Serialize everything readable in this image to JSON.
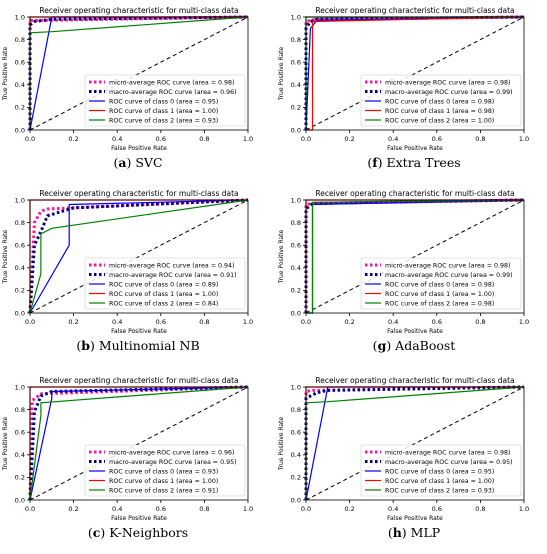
{
  "chart_data": [
    {
      "id": "a",
      "letter": "a",
      "model": "SVC",
      "type": "line",
      "title": "Receiver operating characteristic for multi-class data",
      "xlabel": "False Positive Rate",
      "ylabel": "True Positive Rate",
      "xlim": [
        0.0,
        1.0
      ],
      "ylim": [
        0.0,
        1.0
      ],
      "xticks": [
        "0.0",
        "0.2",
        "0.4",
        "0.6",
        "0.8",
        "1.0"
      ],
      "yticks": [
        "0.0",
        "0.2",
        "0.4",
        "0.6",
        "0.8",
        "1.0"
      ],
      "legend_position": "lower-right",
      "series": [
        {
          "name": "micro-average ROC curve (area = 0.98)",
          "color": "#ff1493",
          "style": "dotted",
          "x": [
            0,
            0,
            0.05,
            1
          ],
          "y": [
            0,
            0.97,
            0.97,
            1
          ]
        },
        {
          "name": "macro-average ROC curve (area = 0.96)",
          "color": "#000080",
          "style": "dotted",
          "x": [
            0,
            0,
            0.02,
            0.1,
            1
          ],
          "y": [
            0,
            0.93,
            0.96,
            0.98,
            1
          ]
        },
        {
          "name": "ROC curve of class 0 (area = 0.95)",
          "color": "#0000ff",
          "style": "solid",
          "x": [
            0,
            0.1,
            1
          ],
          "y": [
            0,
            1,
            1
          ]
        },
        {
          "name": "ROC curve of class 1 (area = 1.00)",
          "color": "#ff0000",
          "style": "solid",
          "x": [
            0,
            0,
            1
          ],
          "y": [
            0,
            1,
            1
          ]
        },
        {
          "name": "ROC curve of class 2 (area = 0.93)",
          "color": "#008000",
          "style": "solid",
          "x": [
            0,
            0,
            0.1,
            1
          ],
          "y": [
            0,
            0.86,
            0.87,
            1
          ]
        }
      ]
    },
    {
      "id": "f",
      "letter": "f",
      "model": "Extra Trees",
      "type": "line",
      "title": "Receiver operating characteristic for multi-class data",
      "xlabel": "False Positive Rate",
      "ylabel": "True Positive Rate",
      "xlim": [
        0.0,
        1.0
      ],
      "ylim": [
        0.0,
        1.0
      ],
      "xticks": [
        "0.0",
        "0.2",
        "0.4",
        "0.6",
        "0.8",
        "1.0"
      ],
      "yticks": [
        "0.0",
        "0.2",
        "0.4",
        "0.6",
        "0.8",
        "1.0"
      ],
      "legend_position": "lower-right",
      "series": [
        {
          "name": "micro-average ROC curve (area = 0.98)",
          "color": "#ff1493",
          "style": "dotted",
          "x": [
            0,
            0,
            0.02,
            0.05,
            1
          ],
          "y": [
            0,
            0.96,
            0.97,
            0.98,
            1
          ]
        },
        {
          "name": "macro-average ROC curve (area = 0.99)",
          "color": "#000080",
          "style": "dotted",
          "x": [
            0,
            0,
            0.02,
            0.05,
            1
          ],
          "y": [
            0,
            0.9,
            0.96,
            0.98,
            1
          ]
        },
        {
          "name": "ROC curve of class 0 (area = 0.98)",
          "color": "#0000ff",
          "style": "solid",
          "x": [
            0,
            0.02,
            0.05,
            1
          ],
          "y": [
            0,
            0.9,
            0.97,
            1
          ]
        },
        {
          "name": "ROC curve of class 1 (area = 0.98)",
          "color": "#ff0000",
          "style": "solid",
          "x": [
            0,
            0.03,
            0.03,
            1
          ],
          "y": [
            0,
            0,
            0.96,
            1
          ]
        },
        {
          "name": "ROC curve of class 2 (area = 1.00)",
          "color": "#008000",
          "style": "solid",
          "x": [
            0,
            0,
            1
          ],
          "y": [
            0,
            1,
            1
          ]
        }
      ]
    },
    {
      "id": "b",
      "letter": "b",
      "model": "Multinomial NB",
      "type": "line",
      "title": "Receiver operating characteristic for multi-class data",
      "xlabel": "False Positive Rate",
      "ylabel": "True Positive Rate",
      "xlim": [
        0.0,
        1.0
      ],
      "ylim": [
        0.0,
        1.0
      ],
      "xticks": [
        "0.0",
        "0.2",
        "0.4",
        "0.6",
        "0.8",
        "1.0"
      ],
      "yticks": [
        "0.0",
        "0.2",
        "0.4",
        "0.6",
        "0.8",
        "1.0"
      ],
      "legend_position": "lower-right",
      "series": [
        {
          "name": "micro-average ROC curve (area = 0.94)",
          "color": "#ff1493",
          "style": "dotted",
          "x": [
            0,
            0.02,
            0.05,
            0.08,
            1
          ],
          "y": [
            0,
            0.8,
            0.9,
            0.92,
            1
          ]
        },
        {
          "name": "macro-average ROC curve (area = 0.91)",
          "color": "#000080",
          "style": "dotted",
          "x": [
            0,
            0.02,
            0.05,
            0.08,
            0.2,
            1
          ],
          "y": [
            0,
            0.6,
            0.72,
            0.86,
            0.93,
            1
          ]
        },
        {
          "name": "ROC curve of class 0 (area = 0.89)",
          "color": "#0000ff",
          "style": "solid",
          "x": [
            0,
            0.18,
            0.18,
            1
          ],
          "y": [
            0,
            0.6,
            0.96,
            1
          ]
        },
        {
          "name": "ROC curve of class 1 (area = 1.00)",
          "color": "#ff0000",
          "style": "solid",
          "x": [
            0,
            0,
            1
          ],
          "y": [
            0,
            1,
            1
          ]
        },
        {
          "name": "ROC curve of class 2 (area = 0.84)",
          "color": "#008000",
          "style": "solid",
          "x": [
            0,
            0.05,
            0.05,
            0.1,
            1
          ],
          "y": [
            0,
            0.35,
            0.7,
            0.75,
            1
          ]
        }
      ]
    },
    {
      "id": "g",
      "letter": "g",
      "model": "AdaBoost",
      "type": "line",
      "title": "Receiver operating characteristic for multi-class data",
      "xlabel": "False Positive Rate",
      "ylabel": "True Positive Rate",
      "xlim": [
        0.0,
        1.0
      ],
      "ylim": [
        0.0,
        1.0
      ],
      "xticks": [
        "0.0",
        "0.2",
        "0.4",
        "0.6",
        "0.8",
        "1.0"
      ],
      "yticks": [
        "0.0",
        "0.2",
        "0.4",
        "0.6",
        "0.8",
        "1.0"
      ],
      "legend_position": "lower-right",
      "series": [
        {
          "name": "micro-average ROC curve (area = 0.98)",
          "color": "#ff1493",
          "style": "dotted",
          "x": [
            0,
            0,
            0.03,
            1
          ],
          "y": [
            0,
            0.96,
            0.97,
            1
          ]
        },
        {
          "name": "macro-average ROC curve (area = 0.99)",
          "color": "#000080",
          "style": "dotted",
          "x": [
            0,
            0,
            0.03,
            1
          ],
          "y": [
            0,
            0.92,
            0.97,
            1
          ]
        },
        {
          "name": "ROC curve of class 0 (area = 0.98)",
          "color": "#0000ff",
          "style": "solid",
          "x": [
            0,
            0.03,
            0.03,
            1
          ],
          "y": [
            0,
            0,
            0.96,
            1
          ]
        },
        {
          "name": "ROC curve of class 1 (area = 1.00)",
          "color": "#ff0000",
          "style": "solid",
          "x": [
            0,
            0,
            1
          ],
          "y": [
            0,
            1,
            1
          ]
        },
        {
          "name": "ROC curve of class 2 (area = 0.98)",
          "color": "#008000",
          "style": "solid",
          "x": [
            0,
            0.03,
            0.03,
            1
          ],
          "y": [
            0,
            0,
            0.98,
            1
          ]
        }
      ]
    },
    {
      "id": "c",
      "letter": "c",
      "model": "K-Neighbors",
      "type": "line",
      "title": "Receiver operating characteristic for multi-class data",
      "xlabel": "False Positive Rate",
      "ylabel": "True Positive Rate",
      "xlim": [
        0.0,
        1.0
      ],
      "ylim": [
        0.0,
        1.0
      ],
      "xticks": [
        "0.0",
        "0.2",
        "0.4",
        "0.6",
        "0.8",
        "1.0"
      ],
      "yticks": [
        "0.0",
        "0.2",
        "0.4",
        "0.6",
        "0.8",
        "1.0"
      ],
      "legend_position": "lower-right",
      "series": [
        {
          "name": "micro-average ROC curve (area = 0.96)",
          "color": "#ff1493",
          "style": "dotted",
          "x": [
            0,
            0.01,
            0.05,
            1
          ],
          "y": [
            0,
            0.88,
            0.94,
            1
          ]
        },
        {
          "name": "macro-average ROC curve (area = 0.95)",
          "color": "#000080",
          "style": "dotted",
          "x": [
            0,
            0.02,
            0.05,
            0.1,
            1
          ],
          "y": [
            0,
            0.78,
            0.92,
            0.96,
            1
          ]
        },
        {
          "name": "ROC curve of class 0 (area = 0.93)",
          "color": "#0000ff",
          "style": "solid",
          "x": [
            0,
            0.1,
            0.1,
            1
          ],
          "y": [
            0,
            0.9,
            0.96,
            1
          ]
        },
        {
          "name": "ROC curve of class 1 (area = 1.00)",
          "color": "#ff0000",
          "style": "solid",
          "x": [
            0,
            0,
            1
          ],
          "y": [
            0,
            1,
            1
          ]
        },
        {
          "name": "ROC curve of class 2 (area = 0.91)",
          "color": "#008000",
          "style": "solid",
          "x": [
            0,
            0.05,
            0.05,
            1
          ],
          "y": [
            0,
            0.75,
            0.86,
            1
          ]
        }
      ]
    },
    {
      "id": "h",
      "letter": "h",
      "model": "MLP",
      "type": "line",
      "title": "Receiver operating characteristic for multi-class data",
      "xlabel": "False Positive Rate",
      "ylabel": "True Positive Rate",
      "xlim": [
        0.0,
        1.0
      ],
      "ylim": [
        0.0,
        1.0
      ],
      "xticks": [
        "0.0",
        "0.2",
        "0.4",
        "0.6",
        "0.8",
        "1.0"
      ],
      "yticks": [
        "0.0",
        "0.2",
        "0.4",
        "0.6",
        "0.8",
        "1.0"
      ],
      "legend_position": "lower-right",
      "series": [
        {
          "name": "micro-average ROC curve (area = 0.98)",
          "color": "#ff1493",
          "style": "dotted",
          "x": [
            0,
            0,
            0.03,
            1
          ],
          "y": [
            0,
            0.96,
            0.97,
            1
          ]
        },
        {
          "name": "macro-average ROC curve (area = 0.95)",
          "color": "#000080",
          "style": "dotted",
          "x": [
            0,
            0,
            0.05,
            0.1,
            1
          ],
          "y": [
            0,
            0.9,
            0.95,
            0.97,
            1
          ]
        },
        {
          "name": "ROC curve of class 0 (area = 0.95)",
          "color": "#0000ff",
          "style": "solid",
          "x": [
            0,
            0.1,
            1
          ],
          "y": [
            0,
            1,
            1
          ]
        },
        {
          "name": "ROC curve of class 1 (area = 1.00)",
          "color": "#ff0000",
          "style": "solid",
          "x": [
            0,
            0,
            1
          ],
          "y": [
            0,
            1,
            1
          ]
        },
        {
          "name": "ROC curve of class 2 (area = 0.93)",
          "color": "#008000",
          "style": "solid",
          "x": [
            0,
            0,
            0.1,
            1
          ],
          "y": [
            0,
            0.86,
            0.87,
            1
          ]
        }
      ]
    }
  ]
}
